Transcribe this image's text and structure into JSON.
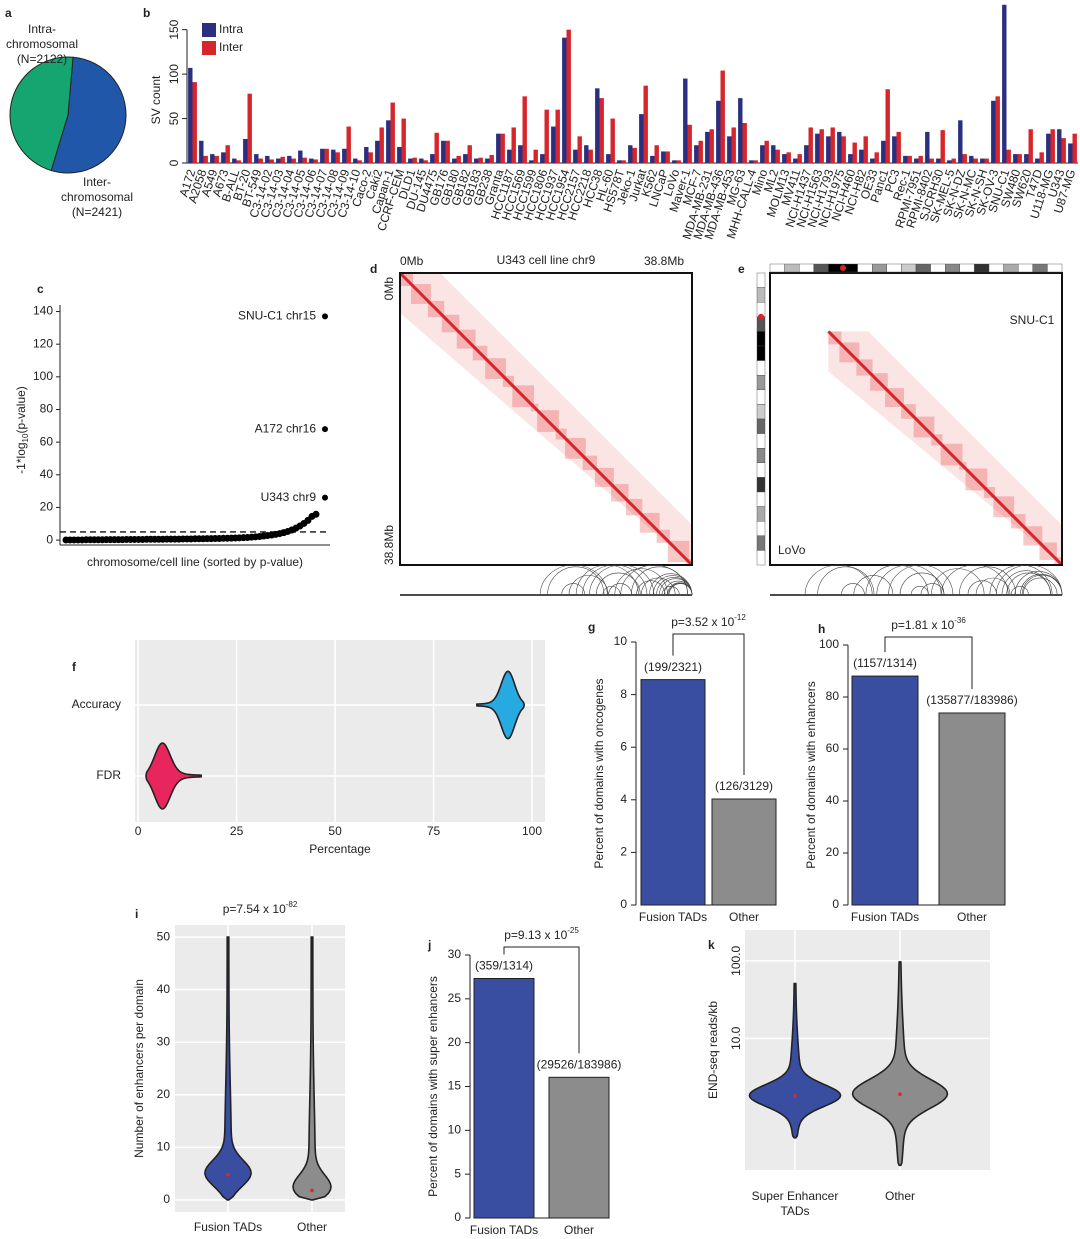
{
  "chart_data": [
    {
      "panel": "a",
      "type": "pie",
      "labels": [
        [
          "Intra-",
          "chromosomal",
          "(N=2122)"
        ],
        [
          "Inter-",
          "chromosomal",
          "(N=2421)"
        ]
      ],
      "values": [
        2122,
        2421
      ],
      "colors": [
        "#14a571",
        "#2157a8"
      ]
    },
    {
      "panel": "b",
      "type": "bar",
      "ylabel": "SV count",
      "categories": [
        "A172",
        "A2058",
        "A549",
        "A673",
        "B-ALL",
        "BT-20",
        "BT-549",
        "C3-14-02",
        "C3-14-03",
        "C3-14-04",
        "C3-14-05",
        "C3-14-06",
        "C3-14-07",
        "C3-14-08",
        "C3-14-09",
        "C3-14-10",
        "Caco-2",
        "Caki2",
        "Capan-1",
        "CCRF-CEM",
        "DLD1",
        "DU-145",
        "DU4475",
        "GB176",
        "GB180",
        "GB182",
        "GB183",
        "GB238",
        "Granta",
        "HCC1187",
        "HCC1569",
        "HCC1599",
        "HCC1806",
        "HCC1937",
        "HCC1954",
        "HCC2157",
        "HCC2218",
        "HCC38",
        "HL-60",
        "HS578T",
        "Jeko-1",
        "Jurkat",
        "K562",
        "LNCaP",
        "LoVo",
        "Maver-1",
        "MCF-7",
        "MDA-MB-231",
        "MDA-MB-436",
        "MDA-MB-453",
        "MG-63",
        "MHH-CALL-4",
        "Mino",
        "ML2",
        "MOLM13",
        "MV411",
        "NCI-H1437",
        "NCI-H1563",
        "NCI-H1793",
        "NCI-H1975",
        "NCI-H460",
        "NCI-H82",
        "OE33",
        "Panc1",
        "PC3",
        "Rec-1",
        "RPMI-7951",
        "RPMI-8402",
        "SJCRH30",
        "SK-MEL-5",
        "SK-N-DZ",
        "SK-N-MC",
        "SK-N-SH",
        "SK-OV-3",
        "SNU-C1",
        "SW480",
        "SW620",
        "T47D",
        "U118-MG",
        "U343",
        "U87-MG"
      ],
      "series": [
        {
          "name": "Intra",
          "color": "#2a2f7f",
          "values": [
            107,
            25,
            10,
            12,
            5,
            27,
            10,
            8,
            5,
            8,
            14,
            5,
            16,
            15,
            16,
            5,
            18,
            25,
            48,
            18,
            5,
            5,
            10,
            25,
            5,
            10,
            5,
            5,
            33,
            15,
            20,
            3,
            10,
            41,
            141,
            15,
            20,
            84,
            10,
            3,
            20,
            55,
            8,
            13,
            3,
            95,
            20,
            35,
            70,
            30,
            73,
            3,
            20,
            20,
            10,
            5,
            20,
            33,
            30,
            35,
            10,
            15,
            5,
            25,
            30,
            8,
            5,
            35,
            5,
            3,
            48,
            8,
            5,
            70,
            178,
            10,
            10,
            5,
            33,
            38,
            22
          ]
        },
        {
          "name": "Inter",
          "color": "#d7262b",
          "values": [
            91,
            8,
            8,
            20,
            3,
            78,
            5,
            4,
            7,
            5,
            6,
            4,
            16,
            12,
            41,
            3,
            12,
            40,
            68,
            50,
            6,
            3,
            34,
            25,
            8,
            20,
            6,
            9,
            33,
            40,
            75,
            15,
            60,
            60,
            150,
            30,
            15,
            73,
            50,
            3,
            17,
            87,
            20,
            13,
            3,
            43,
            25,
            38,
            104,
            40,
            45,
            3,
            25,
            15,
            12,
            10,
            40,
            38,
            40,
            30,
            23,
            30,
            12,
            83,
            35,
            8,
            8,
            5,
            37,
            5,
            10,
            5,
            5,
            75,
            15,
            10,
            38,
            12,
            38,
            28,
            33
          ]
        }
      ],
      "ylim": [
        0,
        180
      ],
      "yticks": [
        0,
        50,
        100,
        150
      ],
      "legend": "top-left"
    },
    {
      "panel": "c",
      "type": "scatter",
      "xlabel": "chromosome/cell line (sorted by p-value)",
      "ylabel": {
        "base": "-1*log",
        "sub": "10",
        "rest": "(p-value)"
      },
      "values": [
        0.1,
        0.1,
        0.1,
        0.1,
        0.1,
        0.2,
        0.2,
        0.2,
        0.2,
        0.2,
        0.3,
        0.3,
        0.3,
        0.3,
        0.3,
        0.4,
        0.4,
        0.4,
        0.4,
        0.4,
        0.5,
        0.5,
        0.5,
        0.5,
        0.5,
        0.6,
        0.6,
        0.6,
        0.6,
        0.7,
        0.7,
        0.7,
        0.8,
        0.8,
        0.8,
        0.9,
        0.9,
        1.0,
        1.0,
        1.1,
        1.1,
        1.2,
        1.3,
        1.4,
        1.5,
        1.6,
        1.8,
        2.0,
        2.2,
        2.5,
        2.8,
        3.1,
        3.5,
        4.0,
        4.6,
        5.3,
        6.2,
        7.3,
        8.6,
        10.2,
        12.1,
        14.5,
        15.8
      ],
      "labeled_points": [
        {
          "label": "SNU-C1 chr15",
          "y": 137
        },
        {
          "label": "A172 chr16",
          "y": 68
        },
        {
          "label": "U343 chr9",
          "y": 26
        }
      ],
      "threshold": 5,
      "color": "#000000",
      "ylim": [
        -3,
        144
      ],
      "yticks": [
        0,
        20,
        40,
        60,
        80,
        100,
        120,
        140
      ]
    },
    {
      "panel": "d",
      "type": "heatmap",
      "title": "U343 cell line chr9",
      "axis_labels": [
        "0Mb",
        "38.8Mb"
      ]
    },
    {
      "panel": "e",
      "type": "heatmap",
      "labels": [
        "SNU-C1",
        "LoVo"
      ]
    },
    {
      "panel": "f",
      "type": "violin",
      "orientation": "horizontal",
      "xlabel": "Percentage",
      "categories": [
        "Accuracy",
        "FDR"
      ],
      "values": [
        94,
        6
      ],
      "ranges": [
        [
          86,
          98
        ],
        [
          2,
          16
        ]
      ],
      "colors": [
        "#27a9e1",
        "#e8255c"
      ],
      "xlim": [
        -0.8,
        103.3
      ],
      "xticks": [
        0,
        25,
        50,
        75,
        100
      ],
      "grid": true
    },
    {
      "panel": "g",
      "type": "bar",
      "ylabel": "Percent of domains with oncogenes",
      "categories": [
        "Fusion TADs",
        "Other"
      ],
      "values": [
        8.57,
        4.03
      ],
      "value_labels": [
        "(199/2321)",
        "(126/3129)"
      ],
      "colors": [
        "#3a4ea1",
        "#8c8c8c"
      ],
      "p_value": {
        "base": "p=3.52 x 10",
        "exponent": "-12"
      },
      "ylim": [
        0,
        10
      ],
      "yticks": [
        0,
        2,
        4,
        6,
        8,
        10
      ]
    },
    {
      "panel": "h",
      "type": "bar",
      "ylabel": "Percent of domains with enhancers",
      "categories": [
        "Fusion TADs",
        "Other"
      ],
      "values": [
        88.05,
        73.85
      ],
      "value_labels": [
        "(1157/1314)",
        "(135877/183986)"
      ],
      "colors": [
        "#3a4ea1",
        "#8c8c8c"
      ],
      "p_value": {
        "base": "p=1.81 x 10",
        "exponent": "-36"
      },
      "ylim": [
        0,
        100
      ],
      "yticks": [
        0,
        20,
        40,
        60,
        80,
        100
      ]
    },
    {
      "panel": "i",
      "type": "violin",
      "orientation": "vertical",
      "ylabel": "Number of enhancers per domain",
      "categories": [
        [
          "Fusion TADs"
        ],
        [
          "Other"
        ]
      ],
      "values": [
        4.8,
        1.8
      ],
      "ranges": [
        [
          0,
          50
        ],
        [
          0,
          50
        ]
      ],
      "colors": [
        "#3a4ea1",
        "#8c8c8c"
      ],
      "p_value": {
        "base": "p=7.54 x 10",
        "exponent": "-82"
      },
      "ylim": [
        -2.3,
        52.3
      ],
      "yticks": [
        0,
        10,
        20,
        30,
        40,
        50
      ],
      "grid": true
    },
    {
      "panel": "j",
      "type": "bar",
      "ylabel": "Percent of domains with super enhancers",
      "categories": [
        "Fusion TADs",
        "Other"
      ],
      "values": [
        27.32,
        16.05
      ],
      "value_labels": [
        "(359/1314)",
        "(29526/183986)"
      ],
      "colors": [
        "#3a4ea1",
        "#8c8c8c"
      ],
      "p_value": {
        "base": "p=9.13 x 10",
        "exponent": "-25"
      },
      "ylim": [
        0,
        30
      ],
      "yticks": [
        0,
        5,
        10,
        15,
        20,
        25,
        30
      ]
    },
    {
      "panel": "k",
      "type": "violin",
      "orientation": "vertical",
      "ylabel": "END-seq reads/kb",
      "categories": [
        [
          "Super Enhancer",
          "TADs"
        ],
        [
          "Other"
        ]
      ],
      "values": [
        1.8,
        1.9
      ],
      "ranges": [
        [
          0.52,
          51
        ],
        [
          0.23,
          97
        ]
      ],
      "colors": [
        "#3a4ea1",
        "#8c8c8c"
      ],
      "log_scale": true,
      "ylim": [
        0.2,
        250
      ],
      "yticks": [
        {
          "value": 100,
          "label": "100.0"
        },
        {
          "value": 10,
          "label": "10.0"
        }
      ],
      "grid": true
    }
  ]
}
